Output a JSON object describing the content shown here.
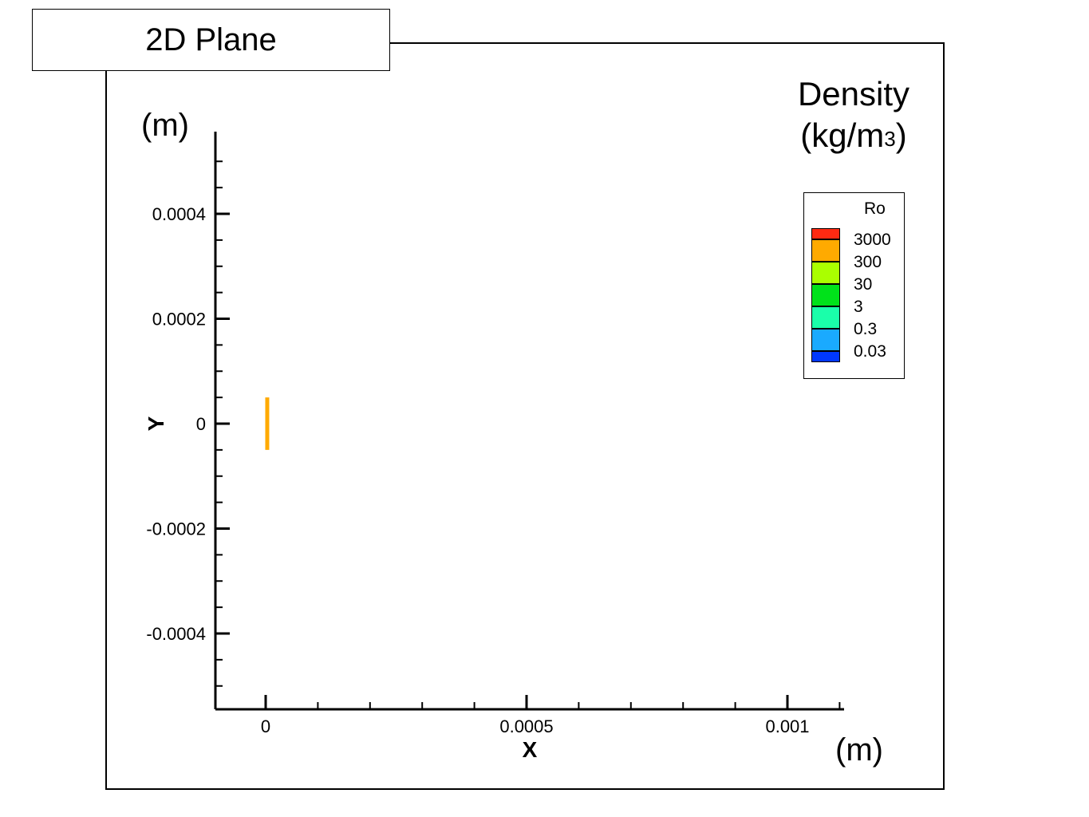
{
  "title": "2D Plane",
  "y_unit": "(m)",
  "x_unit": "(m)",
  "colorbar_caption": {
    "line1": "Density",
    "line2_prefix": "(kg/m",
    "line2_sup": "3",
    "line2_suffix": ")"
  },
  "legend": {
    "title": "Ro",
    "entries": [
      {
        "label": "3000",
        "color": "#ff2a12"
      },
      {
        "label": "300",
        "color": "#ffaa00"
      },
      {
        "label": "30",
        "color": "#aaff00"
      },
      {
        "label": "3",
        "color": "#00e21a"
      },
      {
        "label": "0.3",
        "color": "#1affaa"
      },
      {
        "label": "0.03",
        "color": "#1aaaff"
      },
      {
        "label": "",
        "color": "#0038ff"
      }
    ]
  },
  "chart_data": {
    "type": "scatter",
    "xlabel": "X",
    "ylabel": "Y",
    "xlim": [
      -0.0001,
      0.0011
    ],
    "ylim": [
      -0.00055,
      0.00055
    ],
    "x_ticks": [
      {
        "value": 0,
        "label": "0"
      },
      {
        "value": 0.0005,
        "label": "0.0005"
      },
      {
        "value": 0.001,
        "label": "0.001"
      }
    ],
    "y_ticks": [
      {
        "value": 0.0004,
        "label": "0.0004"
      },
      {
        "value": 0.0002,
        "label": "0.0002"
      },
      {
        "value": 0,
        "label": "0"
      },
      {
        "value": -0.0002,
        "label": "-0.0002"
      },
      {
        "value": -0.0004,
        "label": "-0.0004"
      }
    ],
    "x_minor_step": 0.0001,
    "y_minor_step": 5e-05,
    "segments": [
      {
        "x": 3e-06,
        "y_from": -5e-05,
        "y_to": 5e-05,
        "color": "#ffaa00",
        "level": "300"
      }
    ]
  }
}
